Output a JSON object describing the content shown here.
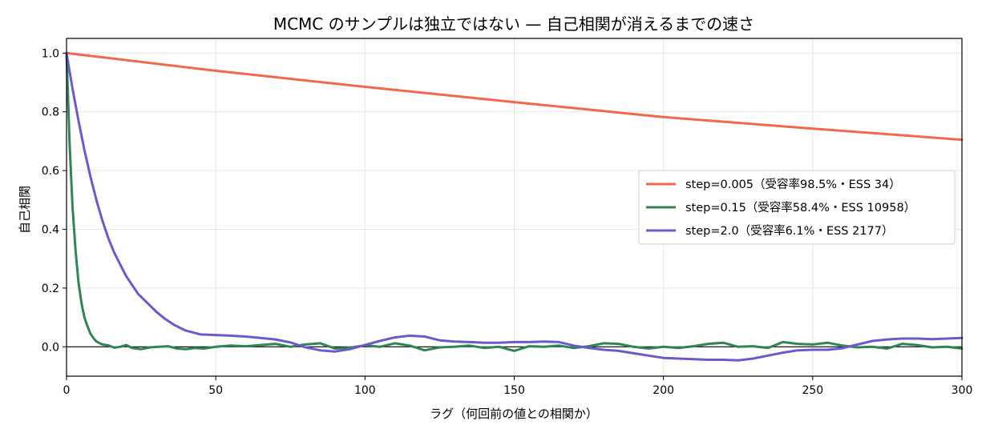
{
  "chart_data": {
    "type": "line",
    "title": "MCMC のサンプルは独立ではない — 自己相関が消えるまでの速さ",
    "xlabel": "ラグ（何回前の値との相関か）",
    "ylabel": "自己相関",
    "xlim": [
      0,
      300
    ],
    "ylim": [
      -0.1,
      1.05
    ],
    "xticks": [
      0,
      50,
      100,
      150,
      200,
      250,
      300
    ],
    "yticks": [
      0.0,
      0.2,
      0.4,
      0.6,
      0.8,
      1.0
    ],
    "xtick_labels": [
      "0",
      "50",
      "100",
      "150",
      "200",
      "250",
      "300"
    ],
    "ytick_labels": [
      "0.0",
      "0.2",
      "0.4",
      "0.6",
      "0.8",
      "1.0"
    ],
    "grid": true,
    "zero_line": true,
    "legend_position": "center-right",
    "series": [
      {
        "name": "step=0.005（受容率98.5%・ESS 34）",
        "color": "#f4674a",
        "x": [
          0,
          50,
          100,
          150,
          200,
          250,
          300
        ],
        "y": [
          1.0,
          0.94,
          0.885,
          0.833,
          0.782,
          0.743,
          0.705
        ]
      },
      {
        "name": "step=0.15（受容率58.4%・ESS 10958）",
        "color": "#2e8555",
        "x": [
          0,
          1,
          2,
          3,
          4,
          5,
          6,
          7,
          8,
          9,
          10,
          12,
          14,
          16,
          18,
          20,
          22,
          25,
          28,
          31,
          34,
          37,
          40,
          43,
          46,
          50,
          55,
          60,
          65,
          70,
          75,
          80,
          85,
          90,
          95,
          100,
          105,
          110,
          115,
          120,
          125,
          130,
          135,
          140,
          145,
          150,
          155,
          160,
          165,
          170,
          175,
          180,
          185,
          190,
          195,
          200,
          205,
          210,
          215,
          220,
          225,
          230,
          235,
          240,
          245,
          250,
          255,
          260,
          265,
          270,
          275,
          280,
          285,
          290,
          295,
          300
        ],
        "y": [
          1.0,
          0.7,
          0.48,
          0.33,
          0.22,
          0.15,
          0.1,
          0.07,
          0.045,
          0.03,
          0.018,
          0.008,
          0.005,
          -0.003,
          0.0,
          0.006,
          -0.004,
          -0.008,
          -0.002,
          0.0,
          0.002,
          -0.006,
          -0.008,
          -0.004,
          -0.006,
          0.0,
          0.004,
          0.002,
          0.006,
          0.01,
          0.0,
          0.008,
          0.012,
          -0.006,
          -0.003,
          0.005,
          0.0,
          0.012,
          0.004,
          -0.012,
          -0.002,
          0.0,
          0.004,
          -0.004,
          0.0,
          -0.014,
          0.002,
          0.0,
          0.004,
          -0.004,
          0.002,
          0.012,
          0.01,
          0.0,
          -0.006,
          0.0,
          -0.004,
          0.002,
          0.01,
          0.014,
          0.0,
          0.002,
          -0.004,
          0.016,
          0.01,
          0.008,
          0.014,
          0.004,
          -0.002,
          0.0,
          -0.006,
          0.01,
          0.006,
          -0.002,
          0.0,
          -0.006
        ]
      },
      {
        "name": "step=2.0（受容率6.1%・ESS 2177）",
        "color": "#6a5acd",
        "x": [
          0,
          2,
          4,
          6,
          8,
          10,
          12,
          14,
          16,
          18,
          20,
          22,
          24,
          26,
          28,
          30,
          33,
          36,
          40,
          45,
          50,
          55,
          60,
          65,
          70,
          75,
          80,
          85,
          90,
          95,
          100,
          105,
          110,
          115,
          120,
          125,
          130,
          135,
          140,
          145,
          150,
          155,
          160,
          165,
          170,
          175,
          180,
          185,
          190,
          195,
          200,
          205,
          210,
          215,
          220,
          225,
          230,
          235,
          240,
          245,
          250,
          255,
          260,
          265,
          270,
          275,
          280,
          285,
          290,
          295,
          300
        ],
        "y": [
          1.0,
          0.88,
          0.77,
          0.67,
          0.58,
          0.5,
          0.43,
          0.37,
          0.32,
          0.28,
          0.24,
          0.21,
          0.18,
          0.16,
          0.14,
          0.12,
          0.095,
          0.075,
          0.055,
          0.042,
          0.04,
          0.038,
          0.035,
          0.03,
          0.025,
          0.015,
          -0.002,
          -0.012,
          -0.016,
          -0.008,
          0.006,
          0.02,
          0.032,
          0.038,
          0.035,
          0.022,
          0.018,
          0.016,
          0.014,
          0.014,
          0.016,
          0.016,
          0.018,
          0.016,
          0.004,
          -0.004,
          -0.01,
          -0.014,
          -0.022,
          -0.03,
          -0.038,
          -0.04,
          -0.042,
          -0.044,
          -0.044,
          -0.046,
          -0.04,
          -0.03,
          -0.02,
          -0.012,
          -0.01,
          -0.01,
          -0.005,
          0.008,
          0.02,
          0.025,
          0.028,
          0.028,
          0.026,
          0.028,
          0.03
        ]
      }
    ]
  }
}
